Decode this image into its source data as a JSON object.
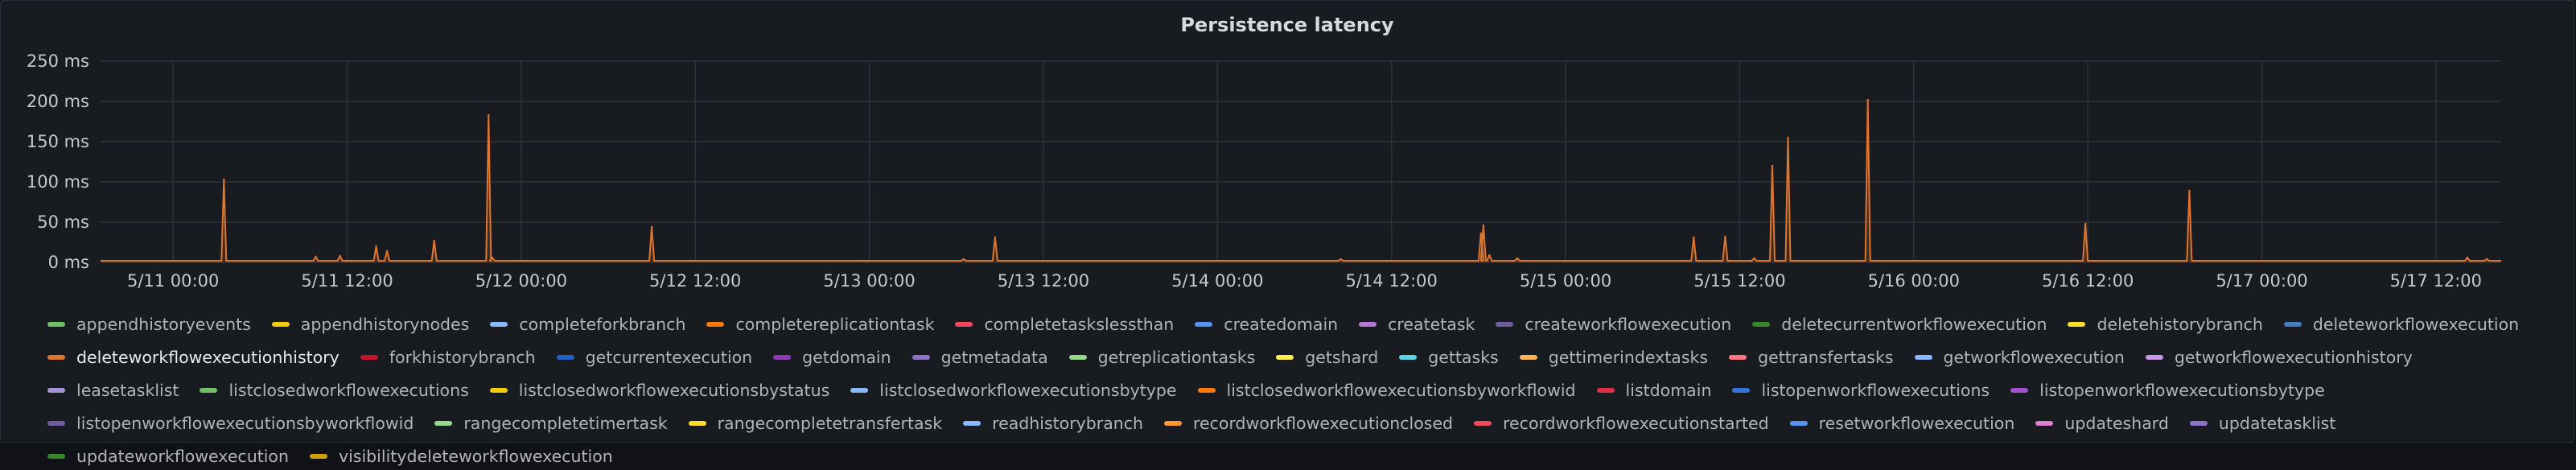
{
  "panel": {
    "title": "Persistence latency"
  },
  "chart_data": {
    "type": "line",
    "title": "Persistence latency",
    "xlabel": "",
    "ylabel": "",
    "y_unit": "ms",
    "ylim": [
      0,
      250
    ],
    "y_ticks": [
      "0 ms",
      "50 ms",
      "100 ms",
      "150 ms",
      "200 ms",
      "250 ms"
    ],
    "xlim": [
      "2024-05-10 19:00",
      "2024-05-17 16:30"
    ],
    "x_ticks": [
      {
        "t": "2024-05-11 00:00",
        "label": "5/11 00:00"
      },
      {
        "t": "2024-05-11 12:00",
        "label": "5/11 12:00"
      },
      {
        "t": "2024-05-12 00:00",
        "label": "5/12 00:00"
      },
      {
        "t": "2024-05-12 12:00",
        "label": "5/12 12:00"
      },
      {
        "t": "2024-05-13 00:00",
        "label": "5/13 00:00"
      },
      {
        "t": "2024-05-13 12:00",
        "label": "5/13 12:00"
      },
      {
        "t": "2024-05-14 00:00",
        "label": "5/14 00:00"
      },
      {
        "t": "2024-05-14 12:00",
        "label": "5/14 12:00"
      },
      {
        "t": "2024-05-15 00:00",
        "label": "5/15 00:00"
      },
      {
        "t": "2024-05-15 12:00",
        "label": "5/15 12:00"
      },
      {
        "t": "2024-05-16 00:00",
        "label": "5/16 00:00"
      },
      {
        "t": "2024-05-16 12:00",
        "label": "5/16 12:00"
      },
      {
        "t": "2024-05-17 00:00",
        "label": "5/17 00:00"
      },
      {
        "t": "2024-05-17 12:00",
        "label": "5/17 12:00"
      }
    ],
    "grid": true,
    "legend_position": "bottom",
    "series": [
      {
        "name": "deleteworkflowexecutionhistory",
        "color": "#e0752d",
        "baseline": 2,
        "points": [
          {
            "t": "2024-05-11 03:30",
            "v": 103
          },
          {
            "t": "2024-05-11 09:50",
            "v": 7
          },
          {
            "t": "2024-05-11 11:30",
            "v": 8
          },
          {
            "t": "2024-05-11 14:00",
            "v": 20
          },
          {
            "t": "2024-05-11 14:45",
            "v": 14
          },
          {
            "t": "2024-05-11 18:00",
            "v": 27
          },
          {
            "t": "2024-05-11 21:45",
            "v": 183
          },
          {
            "t": "2024-05-11 22:00",
            "v": 6
          },
          {
            "t": "2024-05-12 09:00",
            "v": 44
          },
          {
            "t": "2024-05-13 06:30",
            "v": 4
          },
          {
            "t": "2024-05-13 08:40",
            "v": 31
          },
          {
            "t": "2024-05-14 08:30",
            "v": 4
          },
          {
            "t": "2024-05-14 18:10",
            "v": 36
          },
          {
            "t": "2024-05-14 18:20",
            "v": 46
          },
          {
            "t": "2024-05-14 18:45",
            "v": 9
          },
          {
            "t": "2024-05-14 20:40",
            "v": 5
          },
          {
            "t": "2024-05-15 08:50",
            "v": 31
          },
          {
            "t": "2024-05-15 11:00",
            "v": 32
          },
          {
            "t": "2024-05-15 13:00",
            "v": 5
          },
          {
            "t": "2024-05-15 14:15",
            "v": 120
          },
          {
            "t": "2024-05-15 15:20",
            "v": 155
          },
          {
            "t": "2024-05-15 20:50",
            "v": 202
          },
          {
            "t": "2024-05-16 11:50",
            "v": 48
          },
          {
            "t": "2024-05-16 19:00",
            "v": 89
          },
          {
            "t": "2024-05-17 14:10",
            "v": 6
          },
          {
            "t": "2024-05-17 15:30",
            "v": 4
          }
        ]
      }
    ]
  },
  "legend": [
    {
      "label": "appendhistoryevents",
      "color": "#73bf69"
    },
    {
      "label": "appendhistorynodes",
      "color": "#f2cc0c"
    },
    {
      "label": "completeforkbranch",
      "color": "#8ab8ff"
    },
    {
      "label": "completereplicationtask",
      "color": "#ff780a"
    },
    {
      "label": "completetaskslessthan",
      "color": "#f2495c"
    },
    {
      "label": "createdomain",
      "color": "#5794f2"
    },
    {
      "label": "createtask",
      "color": "#b877d9"
    },
    {
      "label": "createworkflowexecution",
      "color": "#705da0"
    },
    {
      "label": "deletecurrentworkflowexecution",
      "color": "#37872d"
    },
    {
      "label": "deletehistorybranch",
      "color": "#fade2a"
    },
    {
      "label": "deleteworkflowexecution",
      "color": "#447ebc"
    },
    {
      "label": "deleteworkflowexecutionhistory",
      "color": "#e0752d"
    },
    {
      "label": "forkhistorybranch",
      "color": "#c4162a"
    },
    {
      "label": "getcurrentexecution",
      "color": "#1f60c4"
    },
    {
      "label": "getdomain",
      "color": "#8f3bb8"
    },
    {
      "label": "getmetadata",
      "color": "#8f73c9"
    },
    {
      "label": "getreplicationtasks",
      "color": "#96d98d"
    },
    {
      "label": "getshard",
      "color": "#ffee52"
    },
    {
      "label": "gettasks",
      "color": "#5ad6e0"
    },
    {
      "label": "gettimerindextasks",
      "color": "#ffb357"
    },
    {
      "label": "gettransfertasks",
      "color": "#ff7383"
    },
    {
      "label": "getworkflowexecution",
      "color": "#8ab8ff"
    },
    {
      "label": "getworkflowexecutionhistory",
      "color": "#ca95e5"
    },
    {
      "label": "leasetasklist",
      "color": "#a594d6"
    },
    {
      "label": "listclosedworkflowexecutions",
      "color": "#73bf69"
    },
    {
      "label": "listclosedworkflowexecutionsbystatus",
      "color": "#f2cc0c"
    },
    {
      "label": "listclosedworkflowexecutionsbytype",
      "color": "#8ab8ff"
    },
    {
      "label": "listclosedworkflowexecutionsbyworkflowid",
      "color": "#ff780a"
    },
    {
      "label": "listdomain",
      "color": "#e02f44"
    },
    {
      "label": "listopenworkflowexecutions",
      "color": "#3274d9"
    },
    {
      "label": "listopenworkflowexecutionsbytype",
      "color": "#a352cc"
    },
    {
      "label": "listopenworkflowexecutionsbyworkflowid",
      "color": "#705da0"
    },
    {
      "label": "rangecompletetimertask",
      "color": "#96d98d"
    },
    {
      "label": "rangecompletetransfertask",
      "color": "#fade2a"
    },
    {
      "label": "readhistorybranch",
      "color": "#8ab8ff"
    },
    {
      "label": "recordworkflowexecutionclosed",
      "color": "#ff9830"
    },
    {
      "label": "recordworkflowexecutionstarted",
      "color": "#f2495c"
    },
    {
      "label": "resetworkflowexecution",
      "color": "#5794f2"
    },
    {
      "label": "updateshard",
      "color": "#e07fd0"
    },
    {
      "label": "updatetasklist",
      "color": "#8f73c9"
    },
    {
      "label": "updateworkflowexecution",
      "color": "#37872d"
    },
    {
      "label": "visibilitydeleteworkflowexecution",
      "color": "#cca300"
    }
  ]
}
